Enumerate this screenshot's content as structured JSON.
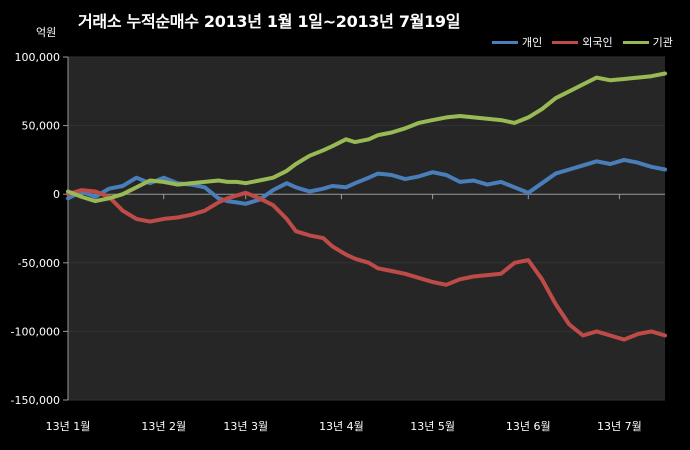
{
  "chart_data": {
    "type": "line",
    "title": "거래소  누적순매수 2013년 1월 1일~2013년 7월19일",
    "unit_label": "억원",
    "xlabel": "",
    "ylabel": "",
    "ylim": [
      -150000,
      100000
    ],
    "y_ticks": [
      100000,
      50000,
      0,
      -50000,
      -100000,
      -150000
    ],
    "y_tick_labels": [
      "100,000",
      "50,000",
      "0",
      "-50,000",
      "-100,000",
      "-150,000"
    ],
    "x_ticks": [
      0,
      21,
      39,
      60,
      80,
      101,
      121
    ],
    "x_tick_labels": [
      "13년 1월",
      "13년 2월",
      "13년 3월",
      "13년 4월",
      "13년 5월",
      "13년 6월",
      "13년 7월"
    ],
    "x_domain": [
      0,
      131
    ],
    "grid": true,
    "legend_position": "top-right",
    "colors": {
      "background": "#000000",
      "plot_area": "#262626",
      "gridline": "#333333",
      "axis": "#999999"
    },
    "series": [
      {
        "name": "개인",
        "color": "#4a7ebb",
        "x": [
          0,
          3,
          6,
          9,
          12,
          15,
          18,
          21,
          24,
          27,
          30,
          33,
          35,
          37,
          39,
          42,
          45,
          48,
          50,
          53,
          56,
          58,
          61,
          63,
          66,
          68,
          71,
          74,
          77,
          80,
          83,
          86,
          89,
          92,
          95,
          98,
          101,
          104,
          107,
          110,
          113,
          116,
          119,
          122,
          125,
          128,
          131
        ],
        "values": [
          -3000,
          2000,
          -2000,
          4000,
          6000,
          12000,
          8000,
          12000,
          8000,
          7000,
          5000,
          -3000,
          -5000,
          -6000,
          -7000,
          -4000,
          3000,
          8000,
          5000,
          2000,
          4000,
          6000,
          5000,
          8000,
          12000,
          15000,
          14000,
          11000,
          13000,
          16000,
          14000,
          9000,
          10000,
          7000,
          9000,
          5000,
          1000,
          8000,
          15000,
          18000,
          21000,
          24000,
          22000,
          25000,
          23000,
          20000,
          18000
        ]
      },
      {
        "name": "외국인",
        "color": "#be4b48",
        "x": [
          0,
          3,
          6,
          9,
          12,
          15,
          18,
          21,
          24,
          27,
          30,
          33,
          35,
          37,
          39,
          42,
          45,
          48,
          50,
          53,
          56,
          58,
          61,
          63,
          66,
          68,
          71,
          74,
          77,
          80,
          83,
          86,
          89,
          92,
          95,
          98,
          101,
          104,
          107,
          110,
          113,
          116,
          119,
          122,
          125,
          128,
          131
        ],
        "values": [
          0,
          3000,
          2000,
          -2000,
          -12000,
          -18000,
          -20000,
          -18000,
          -17000,
          -15000,
          -12000,
          -6000,
          -3000,
          -1000,
          1000,
          -3000,
          -8000,
          -18000,
          -27000,
          -30000,
          -32000,
          -38000,
          -44000,
          -47000,
          -50000,
          -54000,
          -56000,
          -58000,
          -61000,
          -64000,
          -66000,
          -62000,
          -60000,
          -59000,
          -58000,
          -50000,
          -48000,
          -62000,
          -80000,
          -95000,
          -103000,
          -100000,
          -103000,
          -106000,
          -102000,
          -100000,
          -103000
        ]
      },
      {
        "name": "기관",
        "color": "#98b954",
        "x": [
          0,
          3,
          6,
          9,
          12,
          15,
          18,
          21,
          24,
          27,
          30,
          33,
          35,
          37,
          39,
          42,
          45,
          48,
          50,
          53,
          56,
          58,
          61,
          63,
          66,
          68,
          71,
          74,
          77,
          80,
          83,
          86,
          89,
          92,
          95,
          98,
          101,
          104,
          107,
          110,
          113,
          116,
          119,
          122,
          125,
          128,
          131
        ],
        "values": [
          2000,
          -2000,
          -5000,
          -3000,
          0,
          5000,
          10000,
          9000,
          7000,
          8000,
          9000,
          10000,
          9000,
          9000,
          8000,
          10000,
          12000,
          17000,
          22000,
          28000,
          32000,
          35000,
          40000,
          38000,
          40000,
          43000,
          45000,
          48000,
          52000,
          54000,
          56000,
          57000,
          56000,
          55000,
          54000,
          52000,
          56000,
          62000,
          70000,
          75000,
          80000,
          85000,
          83000,
          84000,
          85000,
          86000,
          88000
        ]
      }
    ]
  }
}
